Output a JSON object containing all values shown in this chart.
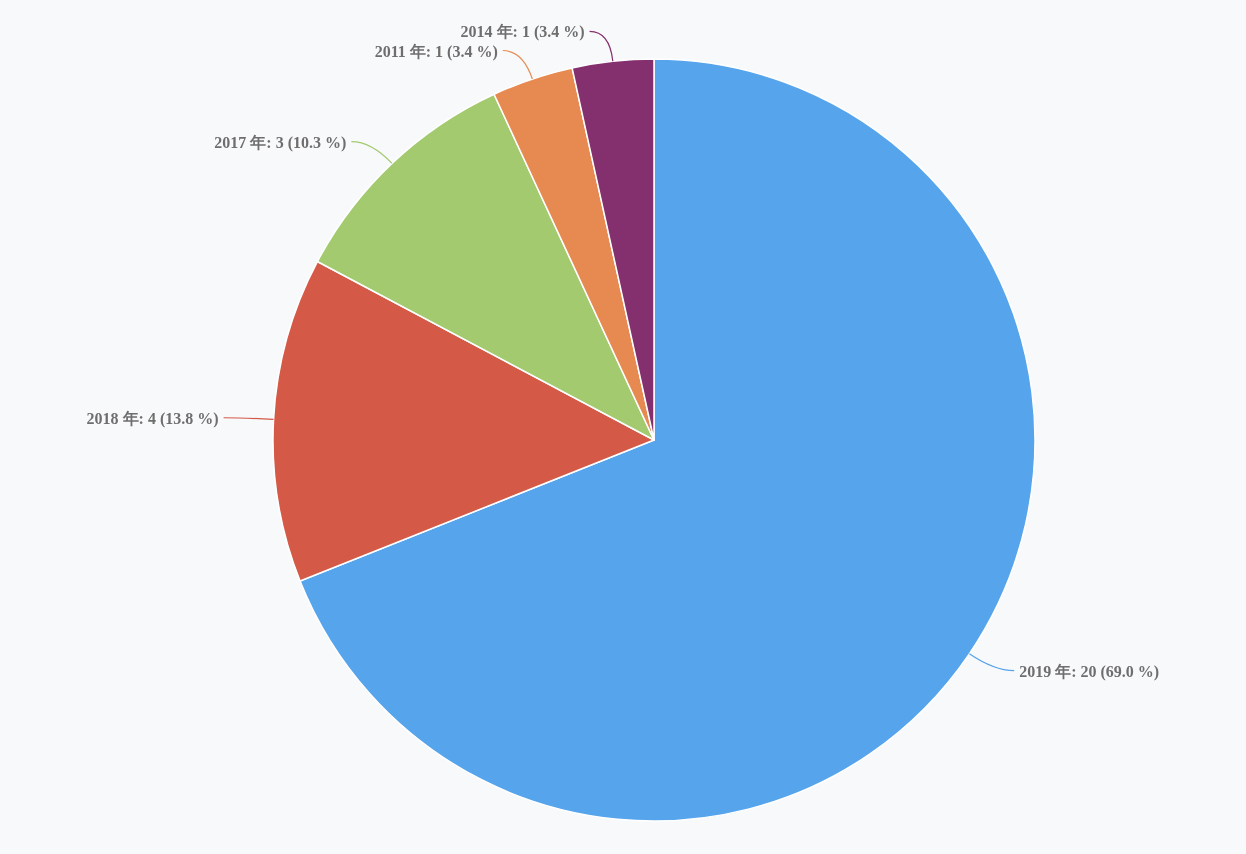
{
  "chart_data": {
    "type": "pie",
    "categories": [
      "2019 年",
      "2018 年",
      "2017 年",
      "2011 年",
      "2014 年"
    ],
    "values": [
      20,
      4,
      3,
      1,
      1
    ],
    "colors": [
      "#55a4ec",
      "#d45a47",
      "#a3ca6e",
      "#e68a52",
      "#85306e"
    ],
    "value_labels": [
      "20 (69.0 %)",
      "4 (13.8 %)",
      "3 (10.3 %)",
      "1 (3.4 %)",
      "1 (3.4 %)"
    ]
  }
}
